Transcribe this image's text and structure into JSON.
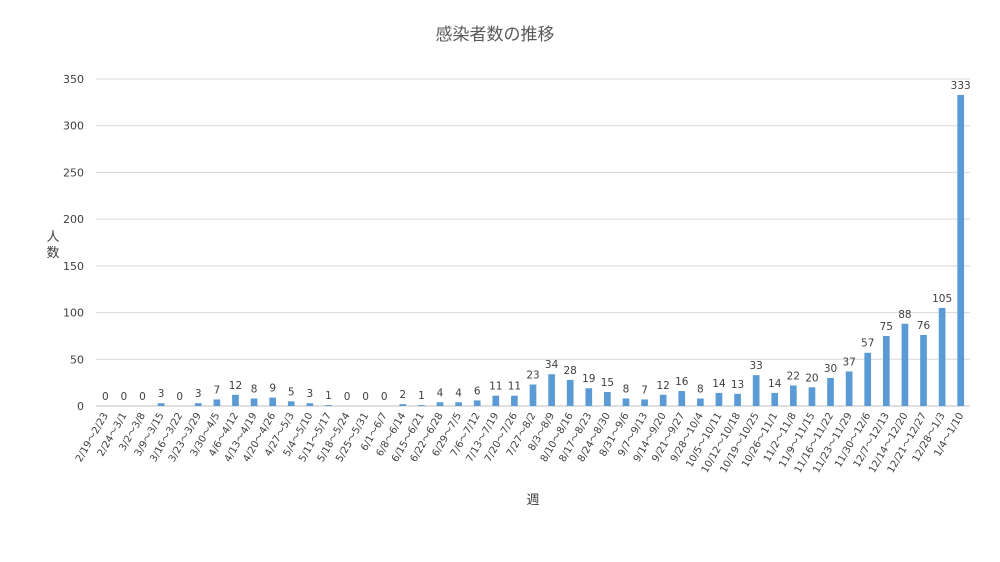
{
  "chart_data": {
    "type": "bar",
    "title": "感染者数の推移",
    "xlabel": "週",
    "ylabel": "人数",
    "ylim": [
      0,
      350
    ],
    "yticks": [
      0,
      50,
      100,
      150,
      200,
      250,
      300,
      350
    ],
    "grid": true,
    "legend": "none",
    "bar_color": "#5b9bd5",
    "categories": [
      "2/19～2/23",
      "2/24～3/1",
      "3/2～3/8",
      "3/9～3/15",
      "3/16～3/22",
      "3/23～3/29",
      "3/30～4/5",
      "4/6～4/12",
      "4/13～4/19",
      "4/20～4/26",
      "4/27～5/3",
      "5/4～5/10",
      "5/11～5/17",
      "5/18～5/24",
      "5/25～5/31",
      "6/1～6/7",
      "6/8～6/14",
      "6/15～6/21",
      "6/22～6/28",
      "6/29～7/5",
      "7/6～7/12",
      "7/13～7/19",
      "7/20～7/26",
      "7/27～8/2",
      "8/3～8/9",
      "8/10～8/16",
      "8/17～8/23",
      "8/24～8/30",
      "8/31～9/6",
      "9/7～9/13",
      "9/14～9/20",
      "9/21～9/27",
      "9/28～10/4",
      "10/5～10/11",
      "10/12～10/18",
      "10/19～10/25",
      "10/26～11/1",
      "11/2～11/8",
      "11/9～11/15",
      "11/16～11/22",
      "11/23～11/29",
      "11/30～12/6",
      "12/7～12/13",
      "12/14～12/20",
      "12/21～12/27",
      "12/28～1/3",
      "1/4～1/10"
    ],
    "values": [
      0,
      0,
      0,
      3,
      0,
      3,
      7,
      12,
      8,
      9,
      5,
      3,
      1,
      0,
      0,
      0,
      2,
      1,
      4,
      4,
      6,
      11,
      11,
      23,
      34,
      28,
      19,
      15,
      8,
      7,
      12,
      16,
      8,
      14,
      13,
      33,
      14,
      22,
      20,
      30,
      37,
      57,
      75,
      88,
      76,
      105,
      333
    ]
  }
}
